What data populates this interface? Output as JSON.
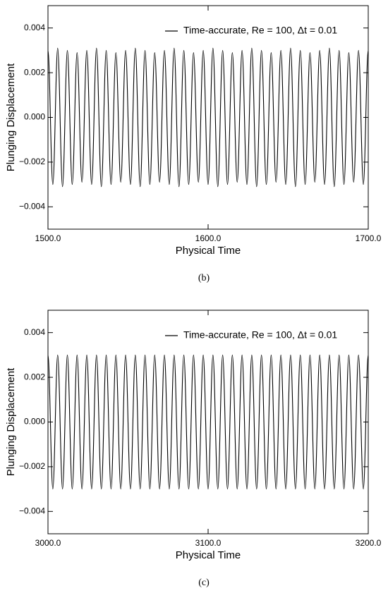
{
  "chart_data": [
    {
      "type": "line",
      "caption": "(b)",
      "xlabel": "Physical Time",
      "ylabel": "Plunging Displacement",
      "xlim": [
        1500,
        1700
      ],
      "xticks": [
        {
          "value": 1500,
          "label": "1500.0"
        },
        {
          "value": 1600,
          "label": "1600.0"
        },
        {
          "value": 1700,
          "label": "1700.0"
        }
      ],
      "ylim": [
        -0.005,
        0.005
      ],
      "yticks": [
        {
          "value": -0.004,
          "label": "−0.004"
        },
        {
          "value": -0.002,
          "label": "−0.002"
        },
        {
          "value": 0,
          "label": "0.000"
        },
        {
          "value": 0.002,
          "label": "0.002"
        },
        {
          "value": 0.004,
          "label": "0.004"
        }
      ],
      "legend": "upper right",
      "x": [
        1500,
        1503.03,
        1506.06,
        1509.09,
        1512.12,
        1515.15,
        1518.18,
        1521.21,
        1524.24,
        1527.27,
        1530.3,
        1533.33,
        1536.36,
        1539.39,
        1542.42,
        1545.45,
        1548.48,
        1551.51,
        1554.54,
        1557.57,
        1560.6,
        1563.63,
        1566.66,
        1569.69,
        1572.72,
        1575.75,
        1578.78,
        1581.81,
        1584.84,
        1587.87,
        1590.9,
        1593.93,
        1596.96,
        1599.99,
        1603.02,
        1606.05,
        1609.08,
        1612.11,
        1615.14,
        1618.17,
        1621.2,
        1624.23,
        1627.26,
        1630.29,
        1633.32,
        1636.35,
        1639.38,
        1642.41,
        1645.44,
        1648.47,
        1651.5,
        1654.53,
        1657.56,
        1660.59,
        1663.62,
        1666.65,
        1669.68,
        1672.71,
        1675.74,
        1678.77,
        1681.8,
        1684.83,
        1687.86,
        1690.89,
        1693.92,
        1696.95,
        1699.98
      ],
      "series": [
        {
          "name": "Time-accurate, Re = 100, Δt = 0.01",
          "color": "#000000",
          "values": [
            0.003,
            -0.003,
            0.0031,
            -0.0031,
            0.003,
            -0.003,
            0.0029,
            -0.0029,
            0.003,
            -0.003,
            0.0031,
            -0.0031,
            0.003,
            -0.003,
            0.0029,
            -0.0029,
            0.003,
            -0.003,
            0.0031,
            -0.0031,
            0.003,
            -0.003,
            0.0029,
            -0.0029,
            0.003,
            -0.003,
            0.0031,
            -0.0031,
            0.003,
            -0.003,
            0.0029,
            -0.0029,
            0.003,
            -0.003,
            0.0031,
            -0.0031,
            0.003,
            -0.003,
            0.0029,
            -0.0029,
            0.003,
            -0.003,
            0.0031,
            -0.0031,
            0.003,
            -0.003,
            0.0029,
            -0.0029,
            0.003,
            -0.003,
            0.0031,
            -0.0031,
            0.003,
            -0.003,
            0.0029,
            -0.0029,
            0.003,
            -0.003,
            0.0031,
            -0.0031,
            0.003,
            -0.003,
            0.0029,
            -0.0029,
            0.003,
            -0.003,
            0.003
          ]
        }
      ]
    },
    {
      "type": "line",
      "caption": "(c)",
      "xlabel": "Physical Time",
      "ylabel": "Plunging Displacement",
      "xlim": [
        3000,
        3200
      ],
      "xticks": [
        {
          "value": 3000,
          "label": "3000.0"
        },
        {
          "value": 3100,
          "label": "3100.0"
        },
        {
          "value": 3200,
          "label": "3200.0"
        }
      ],
      "ylim": [
        -0.005,
        0.005
      ],
      "yticks": [
        {
          "value": -0.004,
          "label": "−0.004"
        },
        {
          "value": -0.002,
          "label": "−0.002"
        },
        {
          "value": 0,
          "label": "0.000"
        },
        {
          "value": 0.002,
          "label": "0.002"
        },
        {
          "value": 0.004,
          "label": "0.004"
        }
      ],
      "legend": "upper right",
      "x": [
        3000,
        3003.03,
        3006.06,
        3009.09,
        3012.12,
        3015.15,
        3018.18,
        3021.21,
        3024.24,
        3027.27,
        3030.3,
        3033.33,
        3036.36,
        3039.39,
        3042.42,
        3045.45,
        3048.48,
        3051.51,
        3054.54,
        3057.57,
        3060.6,
        3063.63,
        3066.66,
        3069.69,
        3072.72,
        3075.75,
        3078.78,
        3081.81,
        3084.84,
        3087.87,
        3090.9,
        3093.93,
        3096.96,
        3099.99,
        3103.02,
        3106.05,
        3109.08,
        3112.11,
        3115.14,
        3118.17,
        3121.2,
        3124.23,
        3127.26,
        3130.29,
        3133.32,
        3136.35,
        3139.38,
        3142.41,
        3145.44,
        3148.47,
        3151.5,
        3154.53,
        3157.56,
        3160.59,
        3163.62,
        3166.65,
        3169.68,
        3172.71,
        3175.74,
        3178.77,
        3181.8,
        3184.83,
        3187.86,
        3190.89,
        3193.92,
        3196.95,
        3199.98
      ],
      "series": [
        {
          "name": "Time-accurate, Re = 100, Δt = 0.01",
          "color": "#000000",
          "values": [
            0.003,
            -0.003,
            0.003,
            -0.003,
            0.003,
            -0.003,
            0.003,
            -0.003,
            0.003,
            -0.003,
            0.003,
            -0.003,
            0.003,
            -0.003,
            0.003,
            -0.003,
            0.003,
            -0.003,
            0.003,
            -0.003,
            0.003,
            -0.003,
            0.003,
            -0.003,
            0.003,
            -0.003,
            0.003,
            -0.003,
            0.003,
            -0.003,
            0.003,
            -0.003,
            0.003,
            -0.003,
            0.003,
            -0.003,
            0.003,
            -0.003,
            0.003,
            -0.003,
            0.003,
            -0.003,
            0.003,
            -0.003,
            0.003,
            -0.003,
            0.003,
            -0.003,
            0.003,
            -0.003,
            0.003,
            -0.003,
            0.003,
            -0.003,
            0.003,
            -0.003,
            0.003,
            -0.003,
            0.003,
            -0.003,
            0.003,
            -0.003,
            0.003,
            -0.003,
            0.003,
            -0.003,
            0.003
          ]
        }
      ]
    }
  ]
}
